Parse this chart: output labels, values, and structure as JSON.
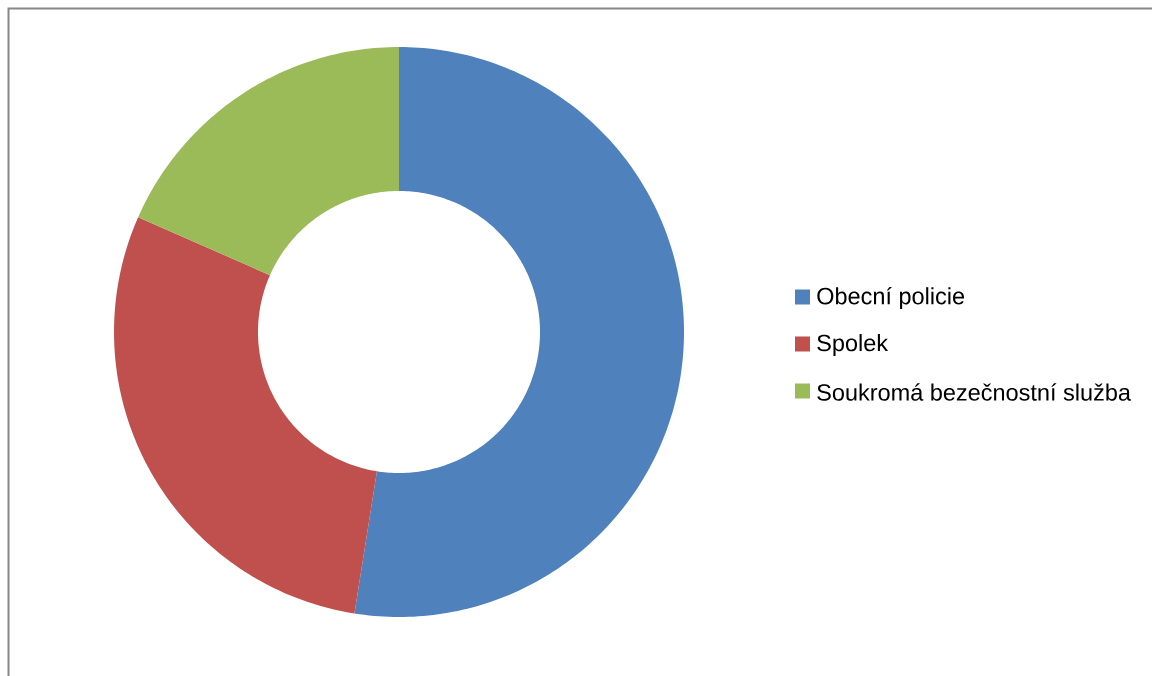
{
  "chart_data": {
    "type": "donut",
    "categories": [
      "Obecní policie",
      "Spolek",
      "Soukromá bezečnostní služba"
    ],
    "values": [
      52.5,
      29.1,
      18.4
    ],
    "colors": [
      "#4f81bd",
      "#c0504d",
      "#9bbb59"
    ],
    "legend": "right"
  }
}
